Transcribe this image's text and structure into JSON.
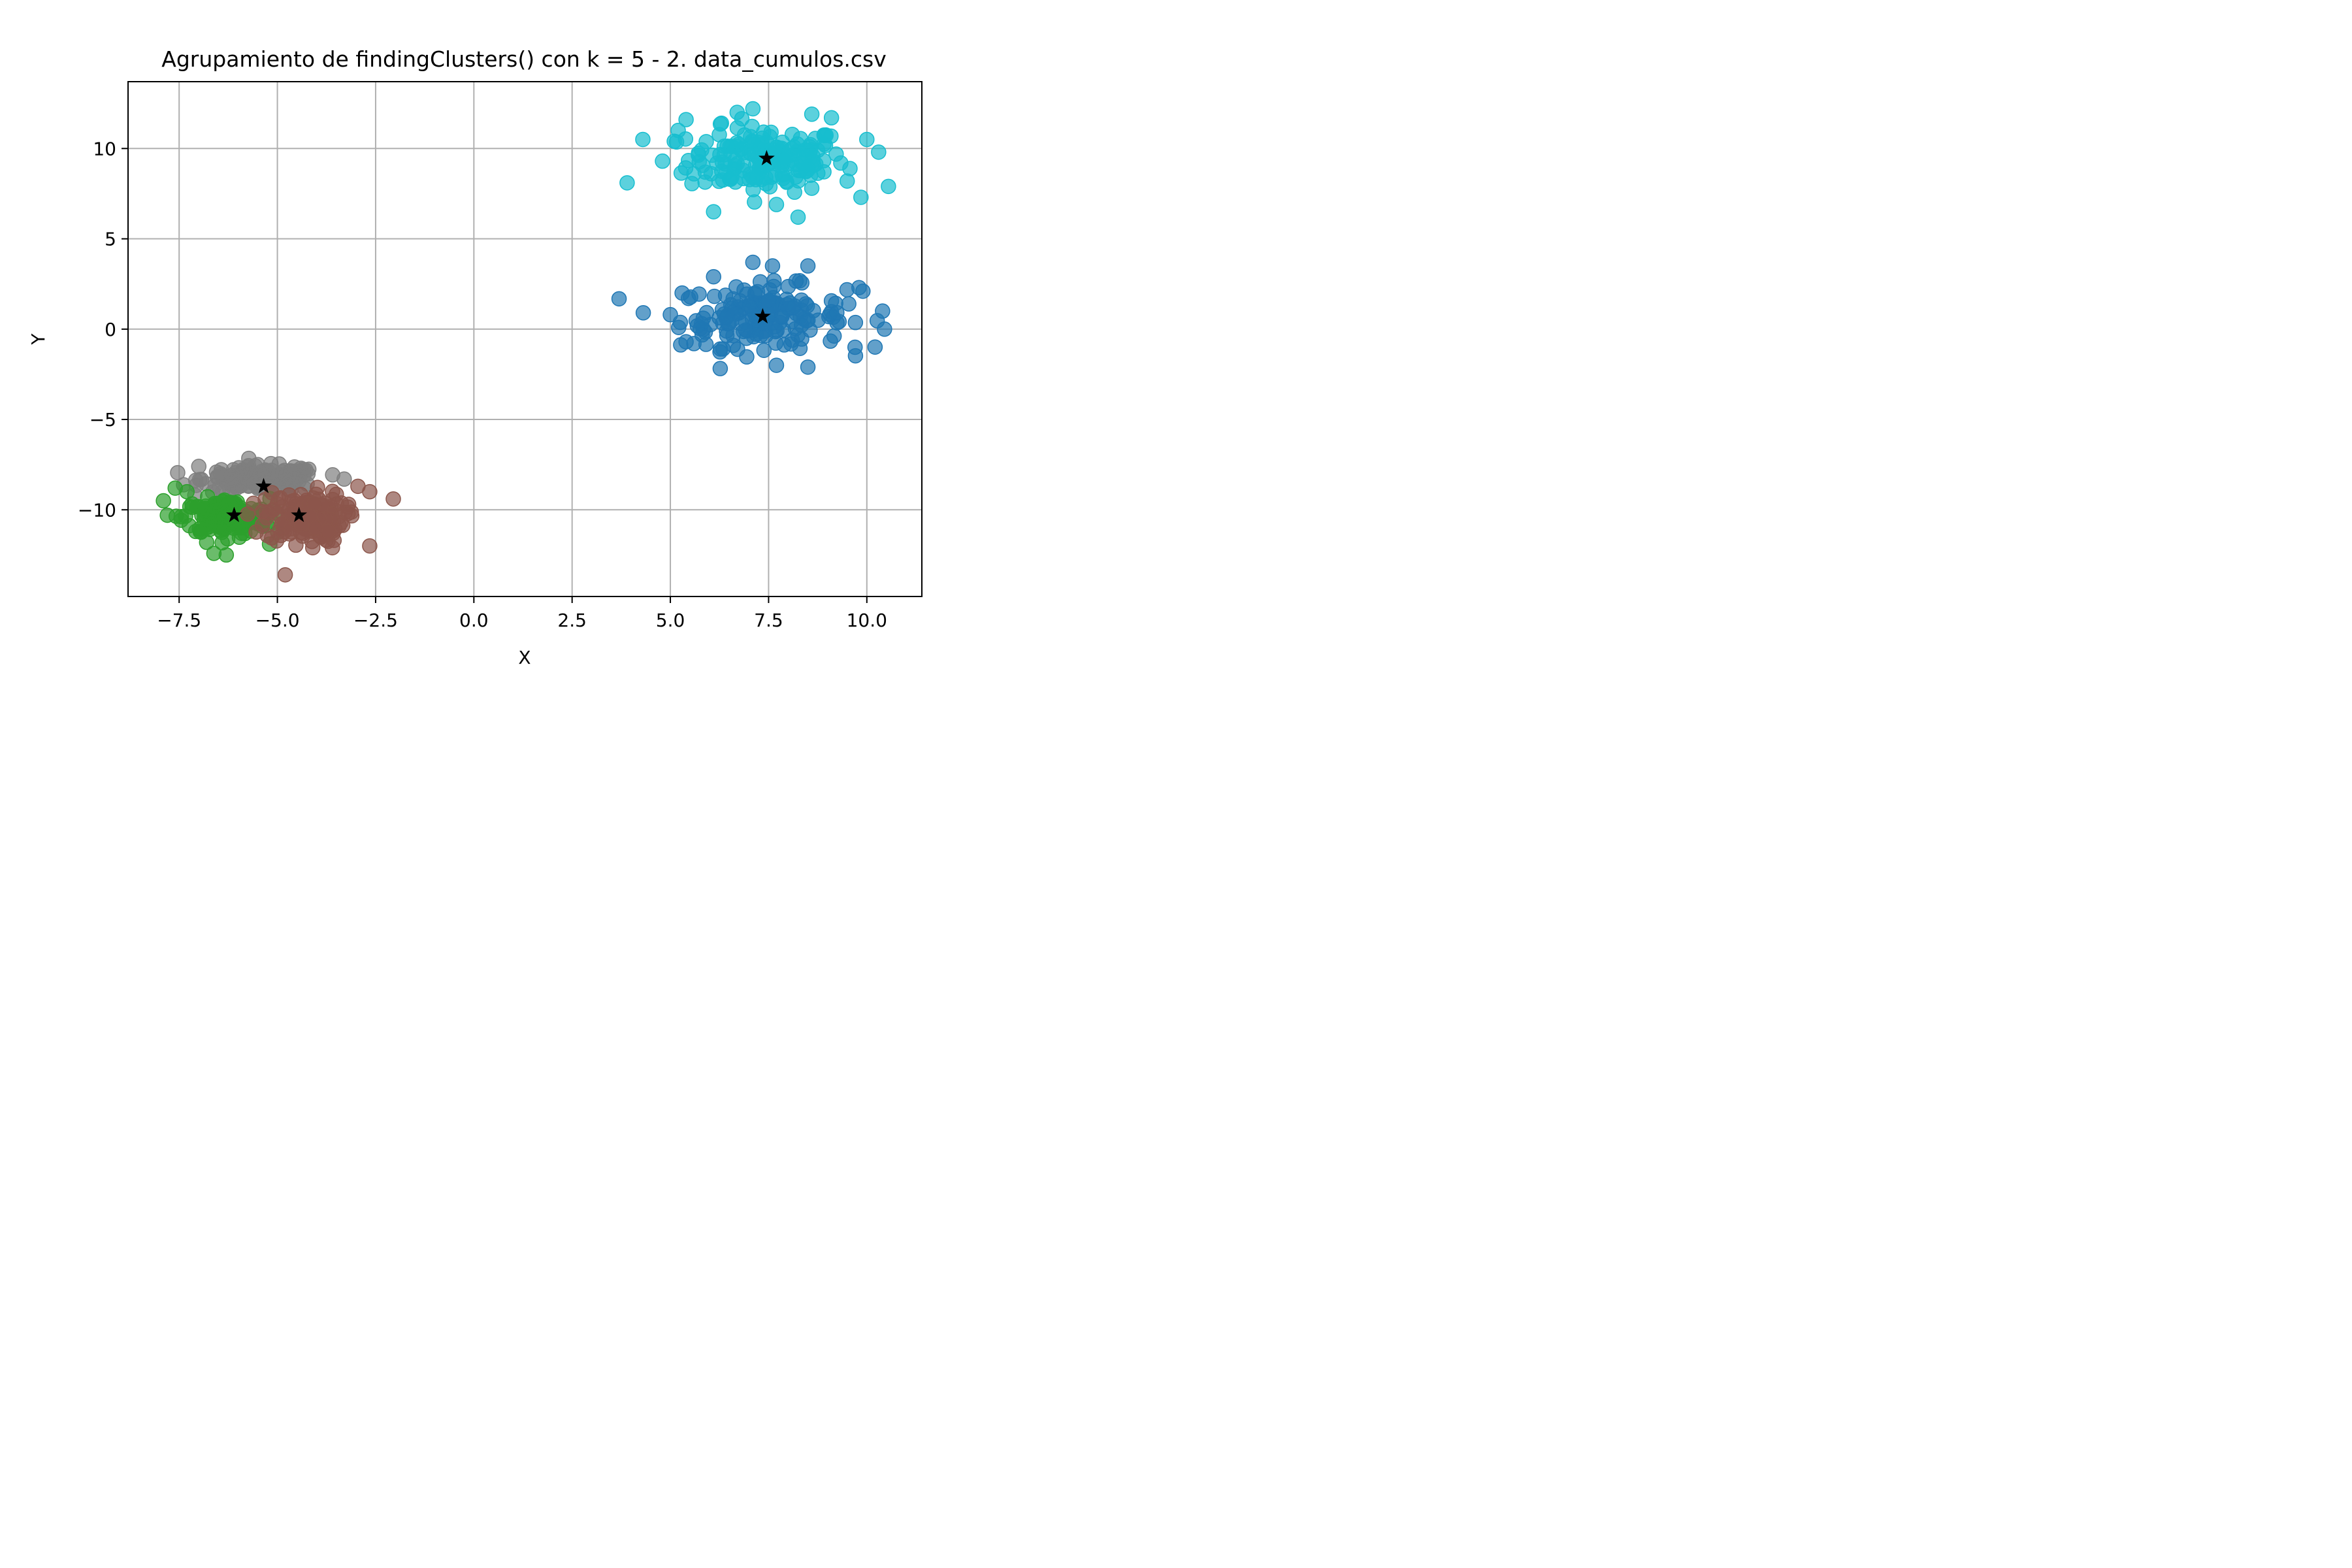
{
  "chart_data": {
    "type": "scatter",
    "title": "Agrupamiento de findingClusters() con k = 5 - 2. data_cumulos.csv",
    "xlabel": "X",
    "ylabel": "Y",
    "xlim": [
      -8.8,
      11.4
    ],
    "ylim": [
      -14.8,
      13.7
    ],
    "xticks": [
      -7.5,
      -5.0,
      -2.5,
      0.0,
      2.5,
      5.0,
      7.5,
      10.0
    ],
    "xtick_labels": [
      "−7.5",
      "−5.0",
      "−2.5",
      "0.0",
      "2.5",
      "5.0",
      "7.5",
      "10.0"
    ],
    "yticks": [
      -10,
      -5,
      0,
      5,
      10
    ],
    "ytick_labels": [
      "−10",
      "−5",
      "0",
      "5",
      "10"
    ],
    "grid": true,
    "legend": "none",
    "series": [
      {
        "color": "#17becf",
        "center": [
          7.45,
          9.4
        ],
        "spread": [
          1.0,
          0.9
        ],
        "points": [
          [
            3.9,
            8.1
          ],
          [
            4.3,
            10.5
          ],
          [
            4.8,
            9.3
          ],
          [
            5.1,
            10.4
          ],
          [
            5.2,
            11.0
          ],
          [
            6.1,
            6.5
          ],
          [
            8.25,
            6.2
          ],
          [
            9.85,
            7.3
          ],
          [
            10.55,
            7.9
          ],
          [
            10.3,
            9.8
          ],
          [
            10.0,
            10.5
          ],
          [
            9.1,
            11.7
          ],
          [
            8.6,
            11.9
          ],
          [
            7.1,
            12.2
          ],
          [
            6.3,
            11.4
          ],
          [
            5.4,
            11.6
          ],
          [
            7.7,
            6.9
          ],
          [
            9.5,
            8.2
          ],
          [
            5.6,
            8.6
          ],
          [
            6.7,
            12.0
          ]
        ]
      },
      {
        "color": "#1f77b4",
        "center": [
          7.35,
          0.7
        ],
        "spread": [
          1.05,
          0.85
        ],
        "points": [
          [
            5.0,
            0.8
          ],
          [
            5.3,
            2.0
          ],
          [
            5.4,
            -0.7
          ],
          [
            6.1,
            2.9
          ],
          [
            7.1,
            3.7
          ],
          [
            7.6,
            3.5
          ],
          [
            8.5,
            3.5
          ],
          [
            9.9,
            2.1
          ],
          [
            10.4,
            1.0
          ],
          [
            10.45,
            0.0
          ],
          [
            9.7,
            -1.0
          ],
          [
            8.5,
            -2.1
          ],
          [
            7.7,
            -2.0
          ],
          [
            6.6,
            -0.9
          ],
          [
            9.8,
            2.3
          ],
          [
            5.6,
            -0.8
          ]
        ]
      },
      {
        "color": "#7f7f7f",
        "center": [
          -5.4,
          -8.3
        ],
        "spread": [
          0.75,
          0.35
        ],
        "points": [
          [
            -7.0,
            -7.6
          ],
          [
            -6.4,
            -8.1
          ],
          [
            -5.5,
            -7.5
          ],
          [
            -4.4,
            -7.7
          ],
          [
            -3.3,
            -8.3
          ],
          [
            -4.7,
            -8.3
          ],
          [
            -5.9,
            -7.9
          ]
        ]
      },
      {
        "color": "#2ca02c",
        "center": [
          -6.3,
          -10.4
        ],
        "spread": [
          0.55,
          0.5
        ],
        "points": [
          [
            -7.9,
            -9.5
          ],
          [
            -7.6,
            -8.8
          ],
          [
            -7.8,
            -10.3
          ],
          [
            -6.3,
            -12.5
          ],
          [
            -6.8,
            -11.8
          ],
          [
            -5.2,
            -11.9
          ],
          [
            -7.3,
            -9.0
          ]
        ]
      },
      {
        "color": "#8c564b",
        "center": [
          -4.3,
          -10.4
        ],
        "spread": [
          0.5,
          0.7
        ],
        "points": [
          [
            -2.05,
            -9.4
          ],
          [
            -2.65,
            -9.0
          ],
          [
            -2.65,
            -12.0
          ],
          [
            -2.95,
            -8.7
          ],
          [
            -4.8,
            -13.6
          ],
          [
            -3.2,
            -10.2
          ],
          [
            -4.1,
            -12.1
          ],
          [
            -3.6,
            -12.1
          ]
        ]
      }
    ],
    "centroids": [
      [
        7.45,
        9.45
      ],
      [
        7.35,
        0.7
      ],
      [
        -5.35,
        -8.7
      ],
      [
        -6.1,
        -10.3
      ],
      [
        -4.45,
        -10.3
      ]
    ]
  }
}
